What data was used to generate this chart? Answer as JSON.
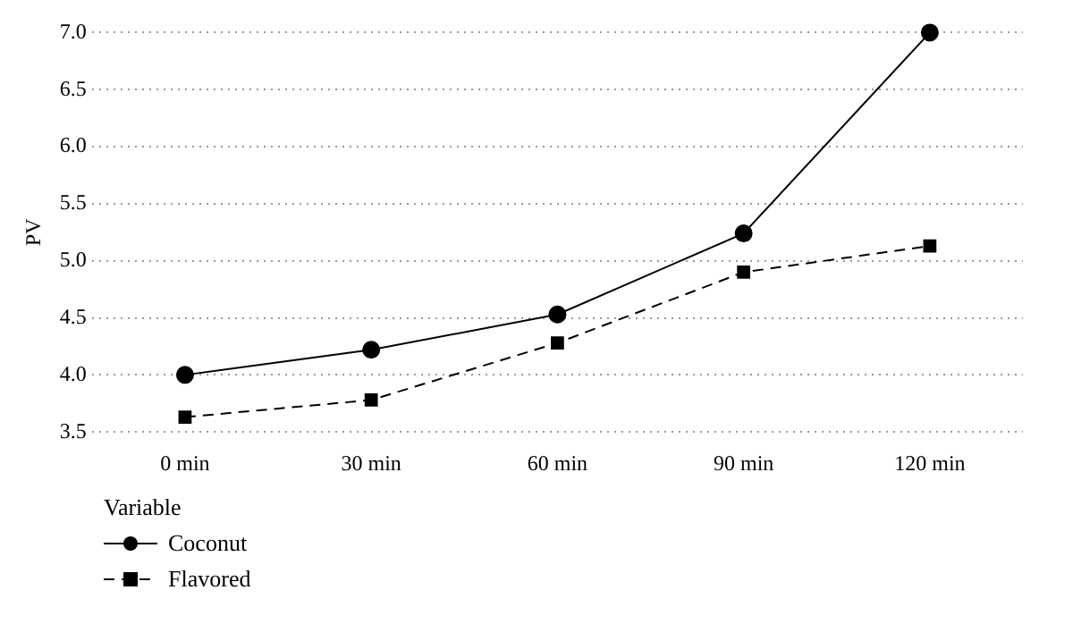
{
  "chart_data": {
    "type": "line",
    "ylabel": "PV",
    "legend_title": "Variable",
    "categories": [
      "0 min",
      "30 min",
      "60 min",
      "90 min",
      "120 min"
    ],
    "series": [
      {
        "name": "Coconut",
        "color": "#000000",
        "values": [
          4.0,
          4.22,
          4.53,
          5.24,
          7.0
        ],
        "marker": "circle",
        "line_style": "solid"
      },
      {
        "name": "Flavored",
        "color": "#000000",
        "values": [
          3.63,
          3.78,
          4.28,
          4.9,
          5.13
        ],
        "marker": "square",
        "line_style": "dashed"
      }
    ],
    "ylim": [
      3.5,
      7.0
    ],
    "yticks": [
      {
        "value": 3.5,
        "label": "3.5"
      },
      {
        "value": 4,
        "label": "4.0"
      },
      {
        "value": 4.5,
        "label": "4.5"
      },
      {
        "value": 5,
        "label": "5.0"
      },
      {
        "value": 5.5,
        "label": "5.5"
      },
      {
        "value": 6,
        "label": "6.0"
      },
      {
        "value": 6.5,
        "label": "6.5"
      },
      {
        "value": 7,
        "label": "7.0"
      }
    ],
    "grid": "y",
    "legend": "bottom left"
  }
}
